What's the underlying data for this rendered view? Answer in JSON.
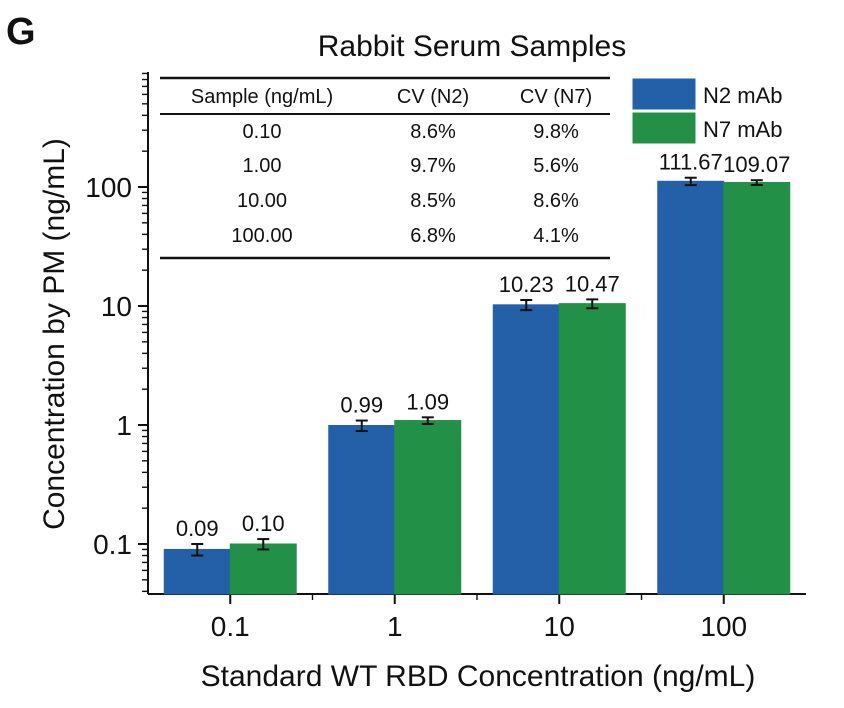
{
  "panel_label": "G",
  "chart_data": {
    "type": "bar",
    "title": "Rabbit Serum Samples",
    "xlabel": "Standard WT RBD Concentration (ng/mL)",
    "ylabel": "Concentration by PM (ng/mL)",
    "yscale": "log",
    "ylim": [
      0.04,
      1000
    ],
    "y_ticks": [
      0.1,
      1,
      10,
      100
    ],
    "y_tick_labels": [
      "0.1",
      "1",
      "10",
      "100"
    ],
    "categories": [
      "0.1",
      "1",
      "10",
      "100"
    ],
    "legend_position": "top-right",
    "series": [
      {
        "name": "N2 mAb",
        "color": "#2460a7",
        "values": [
          0.09,
          0.99,
          10.23,
          111.67
        ],
        "value_labels": [
          "0.09",
          "0.99",
          "10.23",
          "111.67"
        ],
        "error": [
          0.01,
          0.1,
          1.0,
          8.0
        ]
      },
      {
        "name": "N7 mAb",
        "color": "#239048",
        "values": [
          0.1,
          1.09,
          10.47,
          109.07
        ],
        "value_labels": [
          "0.10",
          "1.09",
          "10.47",
          "109.07"
        ],
        "error": [
          0.01,
          0.07,
          0.9,
          5.0
        ]
      }
    ],
    "inset_table": {
      "headers": [
        "Sample (ng/mL)",
        "CV (N2)",
        "CV (N7)"
      ],
      "rows": [
        [
          "0.10",
          "8.6%",
          "9.8%"
        ],
        [
          "1.00",
          "9.7%",
          "5.6%"
        ],
        [
          "10.00",
          "8.5%",
          "8.6%"
        ],
        [
          "100.00",
          "6.8%",
          "4.1%"
        ]
      ]
    }
  }
}
